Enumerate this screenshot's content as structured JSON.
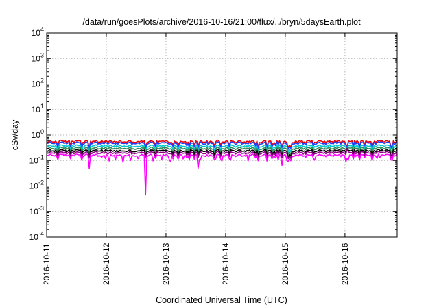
{
  "chart_data": {
    "type": "line",
    "title": "/data/run/goesPlots/archive/2016-10-16/21:00/flux/../bryn/5daysEarth.plot",
    "xlabel": "Coordinated Universal Time (UTC)",
    "ylabel": "cSv/day",
    "y_scale": "log",
    "ylim": [
      0.0001,
      10000
    ],
    "y_ticks": [
      {
        "value": 0.0001,
        "mantissa": "10",
        "exp": "-4"
      },
      {
        "value": 0.001,
        "mantissa": "10",
        "exp": "-3"
      },
      {
        "value": 0.01,
        "mantissa": "10",
        "exp": "-2"
      },
      {
        "value": 0.1,
        "mantissa": "10",
        "exp": "-1"
      },
      {
        "value": 1,
        "mantissa": "10",
        "exp": "0"
      },
      {
        "value": 10,
        "mantissa": "10",
        "exp": "1"
      },
      {
        "value": 100,
        "mantissa": "10",
        "exp": "2"
      },
      {
        "value": 1000,
        "mantissa": "10",
        "exp": "3"
      },
      {
        "value": 10000,
        "mantissa": "10",
        "exp": "4"
      }
    ],
    "xlim": [
      "2016-10-11T00:00",
      "2016-10-16T21:00"
    ],
    "x_ticks": [
      "2016-10-11",
      "2016-10-12",
      "2016-10-13",
      "2016-10-14",
      "2016-10-15",
      "2016-10-16"
    ],
    "grid": true,
    "legend": "none",
    "series": [
      {
        "color": "#e8000b",
        "base": 0.55
      },
      {
        "color": "#1f3fff",
        "base": 0.48
      },
      {
        "color": "#00c8d2",
        "base": 0.37
      },
      {
        "color": "#2e8b57",
        "base": 0.3
      },
      {
        "color": "#000000",
        "base": 0.24
      },
      {
        "color": "#8b0080",
        "base": 0.2
      },
      {
        "color": "#ff00ff",
        "base": 0.16
      }
    ],
    "notable_dips": [
      {
        "x": "2016-10-11T17:00",
        "y": 0.05
      },
      {
        "x": "2016-10-12T16:00",
        "y": 0.0045
      },
      {
        "x": "2016-10-13T13:00",
        "y": 0.05
      },
      {
        "x": "2016-10-16T01:00",
        "y": 0.12
      }
    ]
  }
}
